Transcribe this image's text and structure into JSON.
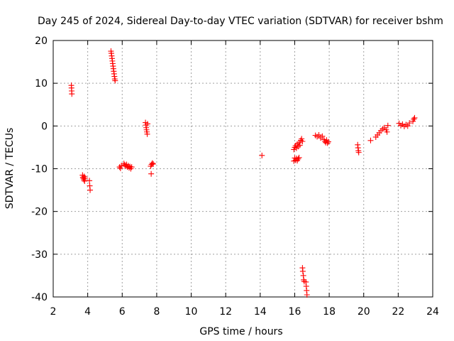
{
  "chart_data": {
    "type": "scatter",
    "title": "Day 245 of 2024, Sidereal Day-to-day VTEC variation (SDTVAR) for receiver bshm",
    "xlabel": "GPS time / hours",
    "ylabel": "SDTVAR / TECUs",
    "xlim": [
      2,
      24
    ],
    "ylim": [
      -40,
      20
    ],
    "xticks": [
      2,
      4,
      6,
      8,
      10,
      12,
      14,
      16,
      18,
      20,
      22,
      24
    ],
    "yticks": [
      -40,
      -30,
      -20,
      -10,
      0,
      10,
      20
    ],
    "grid": true,
    "marker": "+",
    "marker_color": "#ff0000",
    "series": [
      {
        "name": "SDTVAR",
        "points": [
          [
            3.05,
            9.5
          ],
          [
            3.06,
            8.9
          ],
          [
            3.07,
            8.2
          ],
          [
            3.08,
            7.5
          ],
          [
            3.7,
            -11.5
          ],
          [
            3.72,
            -12.0
          ],
          [
            3.75,
            -12.3
          ],
          [
            3.78,
            -12.6
          ],
          [
            3.8,
            -11.8
          ],
          [
            3.82,
            -12.9
          ],
          [
            3.85,
            -12.2
          ],
          [
            4.1,
            -12.8
          ],
          [
            4.12,
            -14.0
          ],
          [
            4.14,
            -15.0
          ],
          [
            5.35,
            17.5
          ],
          [
            5.37,
            17.0
          ],
          [
            5.39,
            16.4
          ],
          [
            5.41,
            15.8
          ],
          [
            5.43,
            15.2
          ],
          [
            5.45,
            14.6
          ],
          [
            5.47,
            14.0
          ],
          [
            5.49,
            13.4
          ],
          [
            5.51,
            12.8
          ],
          [
            5.53,
            12.2
          ],
          [
            5.55,
            11.6
          ],
          [
            5.57,
            11.0
          ],
          [
            5.59,
            10.6
          ],
          [
            5.85,
            -9.6
          ],
          [
            5.9,
            -9.9
          ],
          [
            5.95,
            -9.3
          ],
          [
            6.1,
            -8.8
          ],
          [
            6.15,
            -9.1
          ],
          [
            6.2,
            -9.4
          ],
          [
            6.25,
            -9.0
          ],
          [
            6.3,
            -9.6
          ],
          [
            6.35,
            -9.3
          ],
          [
            6.4,
            -9.8
          ],
          [
            6.45,
            -9.5
          ],
          [
            6.5,
            -10.0
          ],
          [
            6.55,
            -9.6
          ],
          [
            7.35,
            0.8
          ],
          [
            7.37,
            0.2
          ],
          [
            7.39,
            -0.4
          ],
          [
            7.41,
            -0.9
          ],
          [
            7.43,
            -1.4
          ],
          [
            7.45,
            -1.9
          ],
          [
            7.47,
            0.5
          ],
          [
            7.65,
            -9.4
          ],
          [
            7.68,
            -11.2
          ],
          [
            7.7,
            -9.0
          ],
          [
            7.75,
            -8.7
          ],
          [
            7.8,
            -8.9
          ],
          [
            14.1,
            -6.9
          ],
          [
            15.95,
            -8.2
          ],
          [
            16.0,
            -7.5
          ],
          [
            16.05,
            -8.0
          ],
          [
            16.1,
            -7.6
          ],
          [
            16.15,
            -8.1
          ],
          [
            16.2,
            -7.7
          ],
          [
            16.25,
            -7.4
          ],
          [
            15.95,
            -5.5
          ],
          [
            16.0,
            -5.0
          ],
          [
            16.05,
            -4.6
          ],
          [
            16.1,
            -5.2
          ],
          [
            16.15,
            -4.2
          ],
          [
            16.2,
            -4.8
          ],
          [
            16.25,
            -3.9
          ],
          [
            16.3,
            -4.5
          ],
          [
            16.35,
            -3.4
          ],
          [
            16.4,
            -3.0
          ],
          [
            16.45,
            -3.6
          ],
          [
            16.45,
            -33.2
          ],
          [
            16.47,
            -34.0
          ],
          [
            16.5,
            -35.0
          ],
          [
            16.52,
            -36.0
          ],
          [
            16.55,
            -36.4
          ],
          [
            16.65,
            -36.5
          ],
          [
            16.67,
            -37.5
          ],
          [
            16.69,
            -38.5
          ],
          [
            16.71,
            -39.5
          ],
          [
            17.2,
            -2.2
          ],
          [
            17.3,
            -2.5
          ],
          [
            17.4,
            -2.1
          ],
          [
            17.5,
            -2.8
          ],
          [
            17.6,
            -2.4
          ],
          [
            17.7,
            -3.2
          ],
          [
            17.75,
            -3.6
          ],
          [
            17.8,
            -3.9
          ],
          [
            17.85,
            -3.3
          ],
          [
            17.9,
            -4.0
          ],
          [
            17.95,
            -3.7
          ],
          [
            19.65,
            -4.4
          ],
          [
            19.67,
            -5.1
          ],
          [
            19.69,
            -5.8
          ],
          [
            19.71,
            -6.2
          ],
          [
            20.4,
            -3.4
          ],
          [
            20.7,
            -2.6
          ],
          [
            20.8,
            -2.1
          ],
          [
            20.9,
            -1.6
          ],
          [
            21.0,
            -1.1
          ],
          [
            21.1,
            -0.7
          ],
          [
            21.2,
            -0.4
          ],
          [
            21.3,
            -0.9
          ],
          [
            21.35,
            -1.4
          ],
          [
            21.4,
            0.1
          ],
          [
            22.05,
            0.6
          ],
          [
            22.15,
            0.1
          ],
          [
            22.25,
            0.4
          ],
          [
            22.35,
            -0.1
          ],
          [
            22.45,
            0.3
          ],
          [
            22.55,
            0.0
          ],
          [
            22.65,
            0.7
          ],
          [
            22.85,
            1.1
          ],
          [
            22.9,
            1.6
          ],
          [
            22.95,
            1.9
          ]
        ]
      }
    ]
  }
}
